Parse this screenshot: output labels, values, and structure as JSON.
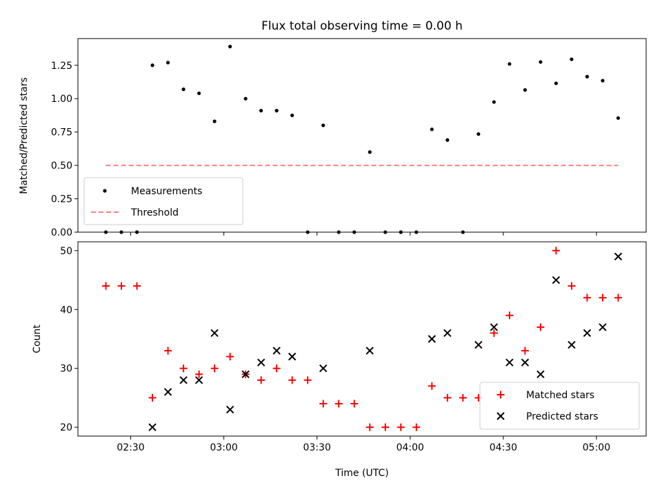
{
  "chart_data": [
    {
      "type": "scatter",
      "title": "Flux total observing time = 0.00 h",
      "xlabel": "",
      "ylabel": "Matched/Predicted stars",
      "ylim": [
        0,
        1.45
      ],
      "xlim": [
        "02:13",
        "05:16"
      ],
      "yticks": [
        0.0,
        0.25,
        0.5,
        0.75,
        1.0,
        1.25
      ],
      "ytick_labels": [
        "0.00",
        "0.25",
        "0.50",
        "0.75",
        "1.00",
        "1.25"
      ],
      "legend_position": "lower-left",
      "series": [
        {
          "name": "Measurements",
          "marker": "dot",
          "color": "#000000",
          "x": [
            "02:22",
            "02:27",
            "02:32",
            "02:37",
            "02:42",
            "02:47",
            "02:52",
            "02:57",
            "03:02",
            "03:07",
            "03:12",
            "03:17",
            "03:22",
            "03:27",
            "03:32",
            "03:37",
            "03:42",
            "03:47",
            "03:52",
            "03:57",
            "04:02",
            "04:07",
            "04:12",
            "04:17",
            "04:22",
            "04:27",
            "04:32",
            "04:37",
            "04:42",
            "04:47",
            "04:52",
            "04:57",
            "05:02",
            "05:07"
          ],
          "y": [
            0.0,
            0.0,
            0.0,
            1.25,
            1.27,
            1.07,
            1.04,
            0.83,
            1.39,
            1.0,
            0.91,
            0.91,
            0.875,
            0.0,
            0.8,
            0.0,
            0.0,
            0.6,
            0.0,
            0.0,
            0.0,
            0.77,
            0.69,
            0.0,
            0.735,
            0.975,
            1.26,
            1.065,
            1.275,
            1.115,
            1.295,
            1.165,
            1.135,
            0.855
          ]
        }
      ],
      "threshold": {
        "name": "Threshold",
        "value": 0.5,
        "x_start": "02:22",
        "x_end": "05:07",
        "color": "#ff7f7f",
        "style": "dashed"
      }
    },
    {
      "type": "scatter",
      "title": "",
      "xlabel": "Time (UTC)",
      "ylabel": "Count",
      "ylim": [
        18.5,
        51.5
      ],
      "xlim": [
        "02:13",
        "05:16"
      ],
      "yticks": [
        20,
        30,
        40,
        50
      ],
      "ytick_labels": [
        "20",
        "30",
        "40",
        "50"
      ],
      "xticks": [
        "02:30",
        "03:00",
        "03:30",
        "04:00",
        "04:30",
        "05:00"
      ],
      "xtick_labels": [
        "02:30",
        "03:00",
        "03:30",
        "04:00",
        "04:30",
        "05:00"
      ],
      "legend_position": "lower-right",
      "series": [
        {
          "name": "Matched stars",
          "marker": "plus",
          "color": "#ff0000",
          "x": [
            "02:22",
            "02:27",
            "02:32",
            "02:37",
            "02:42",
            "02:47",
            "02:52",
            "02:57",
            "03:02",
            "03:07",
            "03:12",
            "03:17",
            "03:22",
            "03:27",
            "03:32",
            "03:37",
            "03:42",
            "03:47",
            "03:52",
            "03:57",
            "04:02",
            "04:07",
            "04:12",
            "04:17",
            "04:22",
            "04:27",
            "04:32",
            "04:37",
            "04:42",
            "04:47",
            "04:52",
            "04:57",
            "05:02",
            "05:07"
          ],
          "y": [
            44,
            44,
            44,
            25,
            33,
            30,
            29,
            30,
            32,
            29,
            28,
            30,
            28,
            28,
            24,
            24,
            24,
            20,
            20,
            20,
            20,
            27,
            25,
            25,
            25,
            36,
            39,
            33,
            37,
            50,
            44,
            42,
            42,
            42
          ]
        },
        {
          "name": "Predicted stars",
          "marker": "x",
          "color": "#000000",
          "x": [
            "02:37",
            "02:42",
            "02:47",
            "02:52",
            "02:57",
            "03:02",
            "03:07",
            "03:12",
            "03:17",
            "03:22",
            "03:32",
            "03:47",
            "04:07",
            "04:12",
            "04:22",
            "04:27",
            "04:32",
            "04:37",
            "04:42",
            "04:47",
            "04:52",
            "04:57",
            "05:02",
            "05:07"
          ],
          "y": [
            20,
            26,
            28,
            28,
            36,
            23,
            29,
            31,
            33,
            32,
            30,
            33,
            35,
            36,
            34,
            37,
            31,
            31,
            29,
            45,
            34,
            36,
            37,
            49
          ]
        }
      ]
    }
  ]
}
